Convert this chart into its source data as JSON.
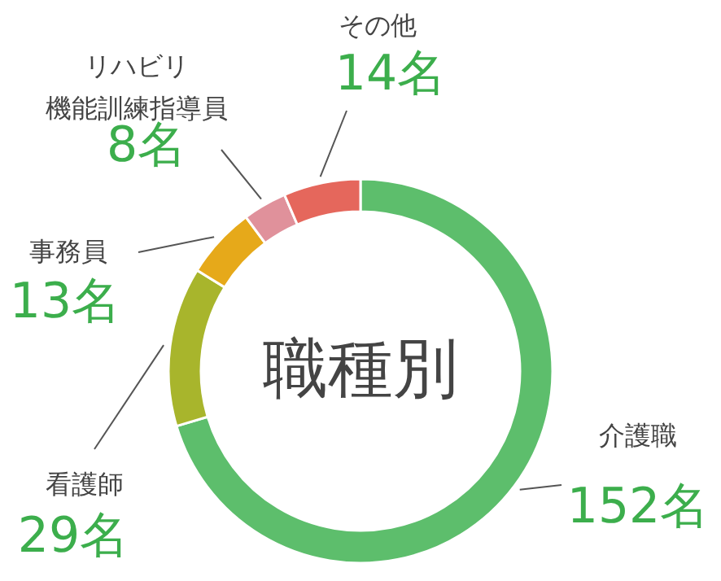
{
  "chart_data": {
    "type": "donut",
    "title": "職種別",
    "categories": [
      "介護職",
      "看護師",
      "事務員",
      "リハビリ機能訓練指導員",
      "その他"
    ],
    "values": [
      152,
      29,
      13,
      8,
      14
    ],
    "colors": [
      "#5dbe6c",
      "#a8b52c",
      "#e6a91a",
      "#e0919b",
      "#e5675c"
    ],
    "value_labels": [
      "152名",
      "29名",
      "13名",
      "8名",
      "14名"
    ]
  }
}
